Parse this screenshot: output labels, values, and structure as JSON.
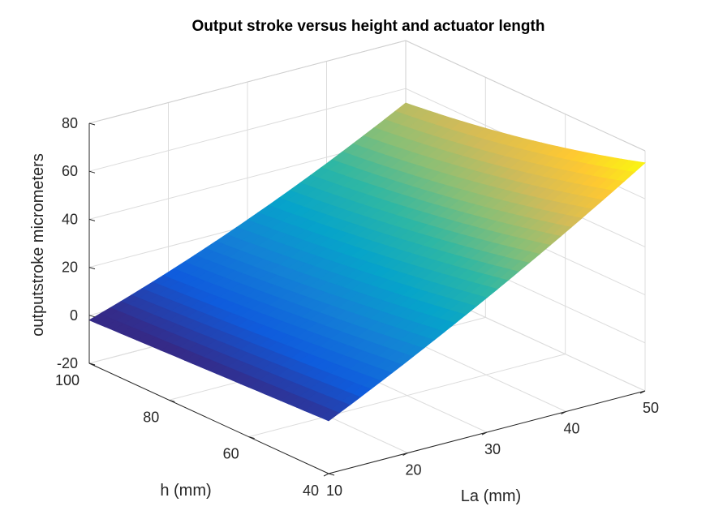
{
  "chart_data": {
    "type": "surface",
    "title": "Output stroke versus height and actuator length",
    "xlabel": "La (mm)",
    "ylabel": "h (mm)",
    "zlabel": "outputstroke micrometers",
    "xlim": [
      10,
      50
    ],
    "ylim": [
      40,
      100
    ],
    "zlim": [
      -20,
      80
    ],
    "x_ticks": [
      "10",
      "20",
      "30",
      "40",
      "50"
    ],
    "y_ticks": [
      "40",
      "60",
      "80",
      "100"
    ],
    "z_ticks": [
      "-20",
      "0",
      "20",
      "40",
      "60",
      "80"
    ],
    "grid": true,
    "colormap": "parula",
    "corners": [
      {
        "La": 10,
        "h": 100,
        "stroke": -2
      },
      {
        "La": 10,
        "h": 40,
        "stroke": 2
      },
      {
        "La": 50,
        "h": 100,
        "stroke": 54
      },
      {
        "La": 50,
        "h": 40,
        "stroke": 75
      }
    ],
    "crli": [
      0,
      75
    ],
    "colors": [
      "#352a87",
      "#0f5cdd",
      "#1481d6",
      "#06a4ca",
      "#2eb7a4",
      "#87bf77",
      "#d1bb59",
      "#fec832",
      "#f9fb0e"
    ]
  }
}
